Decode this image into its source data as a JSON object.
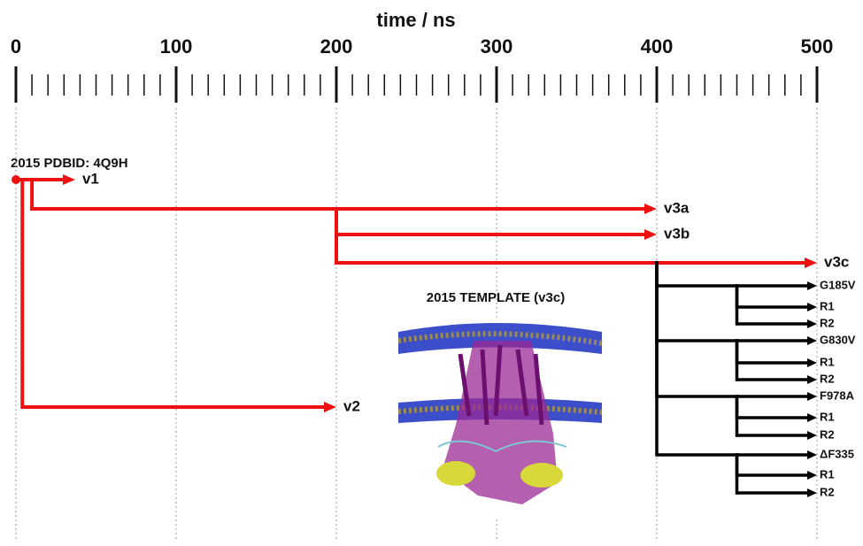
{
  "axis": {
    "title": "time / ns",
    "xlim": [
      0,
      500
    ],
    "ticks": [
      0,
      100,
      200,
      300,
      400,
      500
    ],
    "minor_ticks": [
      10,
      20,
      30,
      40,
      50,
      60,
      70,
      80,
      90,
      110,
      120,
      130,
      140,
      150,
      160,
      170,
      180,
      190,
      210,
      220,
      230,
      240,
      250,
      260,
      270,
      280,
      290,
      310,
      320,
      330,
      340,
      350,
      360,
      370,
      380,
      390,
      410,
      420,
      430,
      440,
      450,
      460,
      470,
      480,
      490
    ]
  },
  "origin": {
    "label": "2015 PDBID: 4Q9H",
    "time": 0,
    "color": "#ee1111"
  },
  "branches": [
    {
      "label": "v1",
      "start": 0,
      "end": 37,
      "color": "#ee1111"
    },
    {
      "label": "v3a",
      "start": 10,
      "end": 400,
      "color": "#ee1111"
    },
    {
      "label": "v3b",
      "start": 200,
      "end": 400,
      "color": "#ee1111"
    },
    {
      "label": "v3c",
      "start": 200,
      "end": 500,
      "color": "#ee1111"
    },
    {
      "label": "v2",
      "start": 4,
      "end": 200,
      "color": "#ee1111"
    },
    {
      "label": "G185V",
      "start": 400,
      "end": 500,
      "color": "#000000"
    },
    {
      "label": "R1",
      "start": 450,
      "end": 500,
      "color": "#000000"
    },
    {
      "label": "R2",
      "start": 450,
      "end": 500,
      "color": "#000000"
    },
    {
      "label": "G830V",
      "start": 400,
      "end": 500,
      "color": "#000000"
    },
    {
      "label": "R1",
      "start": 450,
      "end": 500,
      "color": "#000000"
    },
    {
      "label": "R2",
      "start": 450,
      "end": 500,
      "color": "#000000"
    },
    {
      "label": "F978A",
      "start": 400,
      "end": 500,
      "color": "#000000"
    },
    {
      "label": "R1",
      "start": 450,
      "end": 500,
      "color": "#000000"
    },
    {
      "label": "R2",
      "start": 450,
      "end": 500,
      "color": "#000000"
    },
    {
      "label": "ΔF335",
      "start": 400,
      "end": 500,
      "color": "#000000"
    },
    {
      "label": "R1",
      "start": 450,
      "end": 500,
      "color": "#000000"
    },
    {
      "label": "R2",
      "start": 450,
      "end": 500,
      "color": "#000000"
    }
  ],
  "image_caption": "2015 TEMPLATE (v3c)"
}
